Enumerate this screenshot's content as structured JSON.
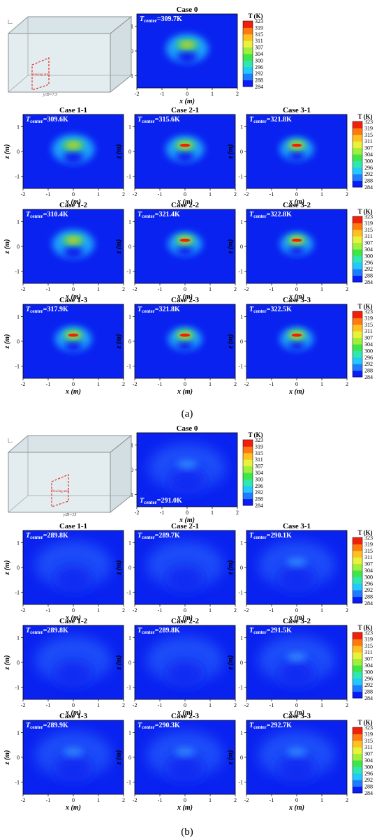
{
  "figure": {
    "panel_labels": [
      "(a)",
      "(b)"
    ],
    "axis_labels": {
      "x": "x (m)",
      "z": "z (m)"
    },
    "colorbar": {
      "title": "T (K)",
      "ticks": [
        "323",
        "319",
        "315",
        "311",
        "307",
        "304",
        "300",
        "296",
        "292",
        "288",
        "284"
      ],
      "colors": [
        "#0a1cf5",
        "#1e7cff",
        "#22c8ff",
        "#2fe8b0",
        "#3ee64a",
        "#9ef03a",
        "#e8f23a",
        "#ffc020",
        "#ff7a10",
        "#f0200c"
      ]
    },
    "inset_a": {
      "view_label": "y/D=7.5",
      "region_label": "Viewing area"
    },
    "inset_b": {
      "view_label": "y/D=15",
      "region_label": "Viewing area"
    }
  },
  "chart_data": [
    {
      "type": "heatmap",
      "panel": "(a)",
      "xlabel": "x (m)",
      "ylabel": "z (m)",
      "xlim": [
        -2,
        2
      ],
      "ylim": [
        -1.5,
        1.5
      ],
      "xticks": [
        -2,
        -1,
        0,
        1,
        2
      ],
      "yticks": [
        -1,
        0,
        1
      ],
      "colorbar_range": [
        284,
        323
      ],
      "cases": [
        {
          "title": "Case 0",
          "t_center": "=309.7K",
          "t_center_K": 309.7
        },
        {
          "title": "Case 1-1",
          "t_center": "=309.6K",
          "t_center_K": 309.6
        },
        {
          "title": "Case 2-1",
          "t_center": "=315.6K",
          "t_center_K": 315.6
        },
        {
          "title": "Case 3-1",
          "t_center": "=321.8K",
          "t_center_K": 321.8
        },
        {
          "title": "Case 1-2",
          "t_center": "=310.4K",
          "t_center_K": 310.4
        },
        {
          "title": "Case 2-2",
          "t_center": "=321.4K",
          "t_center_K": 321.4
        },
        {
          "title": "Case 3-2",
          "t_center": "=322.8K",
          "t_center_K": 322.8
        },
        {
          "title": "Case 1-3",
          "t_center": "=317.9K",
          "t_center_K": 317.9
        },
        {
          "title": "Case 2-3",
          "t_center": "=321.8K",
          "t_center_K": 321.8
        },
        {
          "title": "Case 3-3",
          "t_center": "=322.5K",
          "t_center_K": 322.5
        }
      ]
    },
    {
      "type": "heatmap",
      "panel": "(b)",
      "xlabel": "x (m)",
      "ylabel": "z (m)",
      "xlim": [
        -2,
        2
      ],
      "ylim": [
        -1.5,
        1.5
      ],
      "xticks": [
        -2,
        -1,
        0,
        1,
        2
      ],
      "yticks": [
        -1,
        0,
        1
      ],
      "colorbar_range": [
        284,
        323
      ],
      "cases": [
        {
          "title": "Case 0",
          "t_center": "=291.0K",
          "t_center_K": 291.0
        },
        {
          "title": "Case 1-1",
          "t_center": "=289.8K",
          "t_center_K": 289.8
        },
        {
          "title": "Case 2-1",
          "t_center": "=289.7K",
          "t_center_K": 289.7
        },
        {
          "title": "Case 3-1",
          "t_center": "=290.1K",
          "t_center_K": 290.1
        },
        {
          "title": "Case 1-2",
          "t_center": "=289.8K",
          "t_center_K": 289.8
        },
        {
          "title": "Case 2-2",
          "t_center": "=289.8K",
          "t_center_K": 289.8
        },
        {
          "title": "Case 3-2",
          "t_center": "=291.5K",
          "t_center_K": 291.5
        },
        {
          "title": "Case 1-3",
          "t_center": "=289.9K",
          "t_center_K": 289.9
        },
        {
          "title": "Case 2-3",
          "t_center": "=290.3K",
          "t_center_K": 290.3
        },
        {
          "title": "Case 3-3",
          "t_center": "=292.7K",
          "t_center_K": 292.7
        }
      ]
    }
  ]
}
